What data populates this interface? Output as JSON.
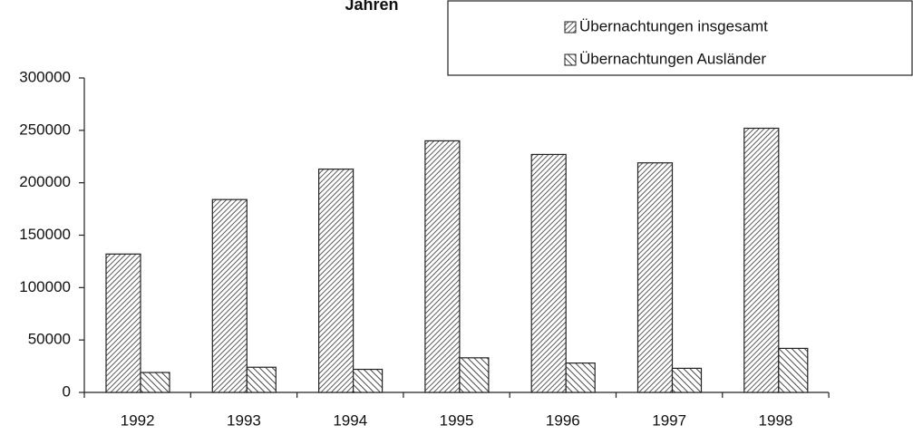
{
  "chart_data": {
    "type": "bar",
    "title": "Jahren",
    "categories": [
      "1992",
      "1993",
      "1994",
      "1995",
      "1996",
      "1997",
      "1998"
    ],
    "series": [
      {
        "name": "Übernachtungen insgesamt",
        "color": "#333333",
        "values": [
          132000,
          184000,
          213000,
          240000,
          227000,
          219000,
          252000
        ]
      },
      {
        "name": "Übernachtungen Ausländer",
        "color": "#333333",
        "values": [
          19000,
          24000,
          22000,
          33000,
          28000,
          23000,
          42000
        ]
      }
    ],
    "ylim": [
      0,
      300000
    ],
    "yticks": [
      0,
      50000,
      100000,
      150000,
      200000,
      250000,
      300000
    ],
    "grid": false
  }
}
